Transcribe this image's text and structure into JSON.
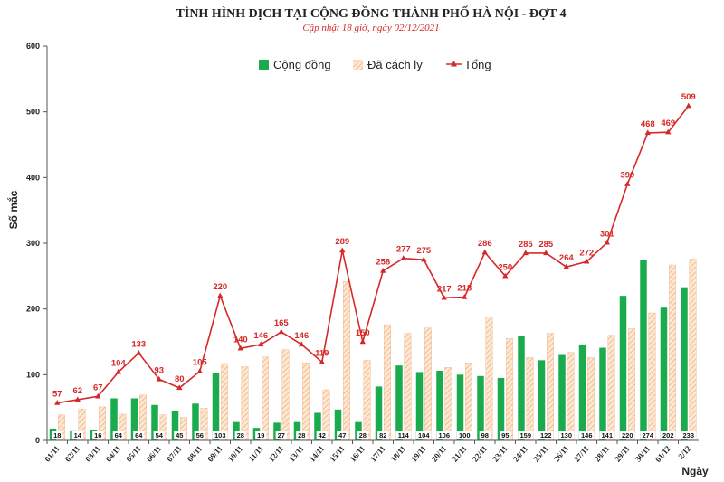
{
  "colors": {
    "community": "#1aab4f",
    "quarantine_fill": "#fde8d4",
    "quarantine_stripe": "#f0b184",
    "total": "#d62828",
    "grid": "#e0e0e0",
    "axis": "#555555"
  },
  "chart_data": {
    "type": "bar",
    "title": "TÌNH HÌNH DỊCH TẠI CỘNG ĐỒNG THÀNH PHỐ HÀ NỘI - ĐỢT 4",
    "subtitle": "Cập nhật 18 giờ, ngày 02/12/2021",
    "xlabel": "Ngày",
    "ylabel": "Số mắc",
    "ylim": [
      0,
      600
    ],
    "yticks": [
      "0",
      "100",
      "200",
      "300",
      "400",
      "500",
      "600"
    ],
    "grid": false,
    "legend_placement": "top",
    "categories": [
      "01/11",
      "02/11",
      "03/11",
      "04/11",
      "05/11",
      "06/11",
      "07/11",
      "08/11",
      "09/11",
      "10/11",
      "11/11",
      "12/11",
      "13/11",
      "14/11",
      "15/11",
      "16/11",
      "17/11",
      "18/11",
      "19/11",
      "20/11",
      "21/11",
      "22/11",
      "23/11",
      "24/11",
      "25/11",
      "26/11",
      "27/11",
      "28/11",
      "29/11",
      "30/11",
      "01/12",
      "2/12"
    ],
    "series": [
      {
        "name": "Cộng đồng",
        "kind": "bar",
        "values": [
          18,
          14,
          16,
          64,
          64,
          54,
          45,
          56,
          103,
          28,
          19,
          27,
          28,
          42,
          47,
          28,
          82,
          114,
          104,
          106,
          100,
          98,
          95,
          159,
          122,
          130,
          146,
          141,
          220,
          274,
          202,
          233
        ]
      },
      {
        "name": "Đã cách ly",
        "kind": "bar",
        "values": [
          39,
          48,
          51,
          40,
          69,
          39,
          35,
          49,
          117,
          112,
          127,
          138,
          118,
          77,
          242,
          122,
          176,
          163,
          171,
          111,
          118,
          188,
          155,
          126,
          163,
          134,
          126,
          160,
          170,
          194,
          267,
          276
        ]
      },
      {
        "name": "Tổng",
        "kind": "line",
        "values": [
          57,
          62,
          67,
          104,
          133,
          93,
          80,
          105,
          220,
          140,
          146,
          165,
          146,
          119,
          289,
          150,
          258,
          277,
          275,
          217,
          218,
          286,
          250,
          285,
          285,
          264,
          272,
          301,
          390,
          468,
          469,
          509
        ],
        "labels": [
          "57",
          "62",
          "67",
          "104",
          "133",
          "93",
          "80",
          "105",
          "220",
          "140",
          "146",
          "165",
          "146",
          "119",
          "289",
          "150",
          "258",
          "277",
          "275",
          "217",
          "218",
          "286",
          "250",
          "285",
          "285",
          "264",
          "272",
          "301",
          "390",
          "468",
          "469",
          "509"
        ]
      }
    ]
  }
}
